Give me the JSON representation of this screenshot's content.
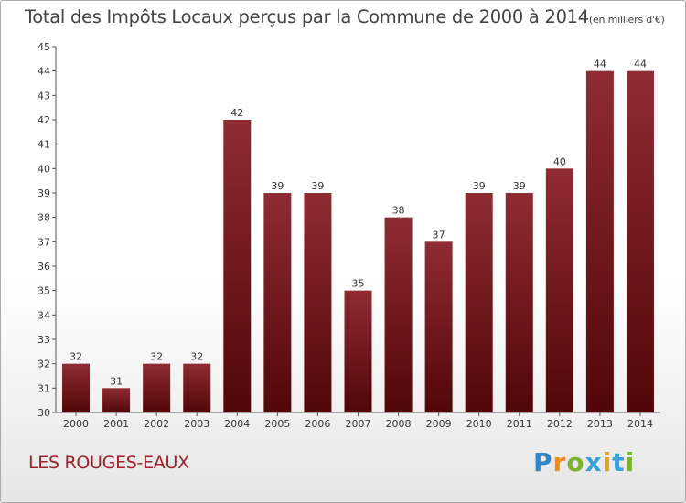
{
  "chart_data": {
    "type": "bar",
    "title": "Total des Impôts Locaux perçus par la Commune de 2000 à 2014",
    "unit_label": "(en milliers d'€)",
    "categories": [
      "2000",
      "2001",
      "2002",
      "2003",
      "2004",
      "2005",
      "2006",
      "2007",
      "2008",
      "2009",
      "2010",
      "2011",
      "2012",
      "2013",
      "2014"
    ],
    "values": [
      32,
      31,
      32,
      32,
      42,
      39,
      39,
      35,
      38,
      37,
      39,
      39,
      40,
      44,
      44
    ],
    "ylim": [
      30,
      45
    ],
    "yticks": [
      30,
      31,
      32,
      33,
      34,
      35,
      36,
      37,
      38,
      39,
      40,
      41,
      42,
      43,
      44,
      45
    ],
    "xlabel": "",
    "ylabel": "",
    "grid": false,
    "bar_color": "#7a1c22"
  },
  "footer": {
    "commune": "LES ROUGES-EAUX",
    "logo": [
      "P",
      "r",
      "o",
      "x",
      "i",
      "t",
      "i"
    ]
  }
}
